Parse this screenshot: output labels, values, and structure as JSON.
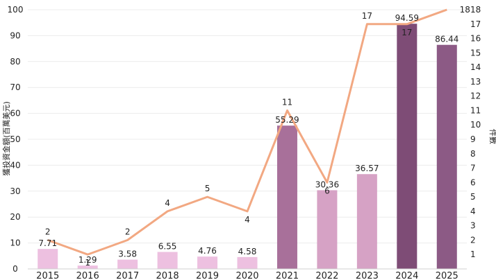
{
  "chart_data": {
    "type": "bar",
    "categories": [
      "2015",
      "2016",
      "2017",
      "2018",
      "2019",
      "2020",
      "2021",
      "2022",
      "2023",
      "2024",
      "2025"
    ],
    "series": [
      {
        "type": "bar",
        "axis": "left",
        "values": [
          7.71,
          1.29,
          3.58,
          6.55,
          4.76,
          4.58,
          55.29,
          30.36,
          36.57,
          94.59,
          86.44
        ],
        "colors": [
          "#EDC0E0",
          "#EDC0E0",
          "#EDC0E0",
          "#EDC0E0",
          "#EDC0E0",
          "#EDC0E0",
          "#A8709A",
          "#D6A2C5",
          "#D6A2C5",
          "#7E4C76",
          "#8C5A85"
        ]
      },
      {
        "type": "line",
        "axis": "right",
        "values": [
          2,
          1,
          2,
          4,
          5,
          4,
          11,
          6,
          17,
          17,
          18
        ],
        "color": "#F2A882"
      }
    ],
    "title": "",
    "xlabel": "",
    "ylabel": "獲投資金額(百萬美元)",
    "y2label": "件數",
    "ylim": [
      0,
      100
    ],
    "y2lim": [
      0,
      18
    ],
    "yticks": [
      0,
      10,
      20,
      30,
      40,
      50,
      60,
      70,
      80,
      90,
      100
    ],
    "y2ticks": [
      1,
      2,
      3,
      4,
      5,
      6,
      7,
      8,
      9,
      10,
      11,
      12,
      13,
      14,
      15,
      16,
      17,
      18
    ],
    "grid": true,
    "legend": "none"
  }
}
